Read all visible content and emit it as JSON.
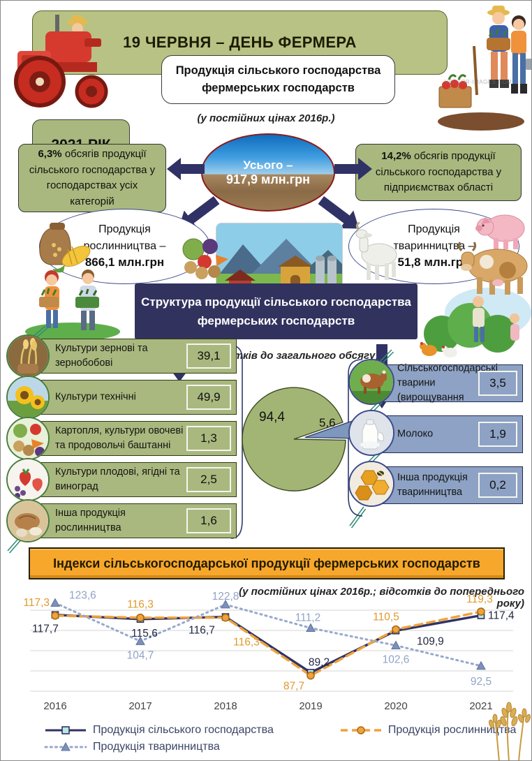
{
  "header": {
    "title": "19 ЧЕРВНЯ – ДЕНЬ ФЕРМЕРА",
    "year_badge": "2021 РІК",
    "box_line1": "Продукція сільського господарства",
    "box_line2": "фермерських господарств",
    "price_note": "(у постійних цінах 2016р.)",
    "watermark": "VECTOR-IMAGES.COM"
  },
  "total": {
    "label": "Усього –",
    "value": "917,9 млн.грн"
  },
  "share_left": {
    "percent": "6,3%",
    "text": "обсягів продукції сільського господарства у господарствах усіх категорій"
  },
  "share_right": {
    "percent": "14,2%",
    "text": "обсягів продукції сільського господарства у підприємствах області"
  },
  "crops_total": {
    "line1": "Продукція",
    "line2": "рослинництва –",
    "value": "866,1 млн.грн"
  },
  "livestock_total": {
    "line1": "Продукція",
    "line2": "тваринництва –",
    "value": "51,8 млн.грн"
  },
  "structure": {
    "banner_line1": "Структура продукції сільського господарства",
    "banner_line2": "фермерських господарств",
    "note": "(відсотків до загального обсягу)",
    "crop_items": [
      {
        "label": "Культури зернові та зернобобові",
        "value": "39,1",
        "icon": "wheat-sack-icon"
      },
      {
        "label": "Культури технічні",
        "value": "49,9",
        "icon": "sunflower-icon"
      },
      {
        "label": "Картопля, культури овочеві та продовольчі баштанні",
        "value": "1,3",
        "icon": "vegetables-icon"
      },
      {
        "label": "Культури плодові, ягідні та виноград",
        "value": "2,5",
        "icon": "fruits-icon"
      },
      {
        "label": "Інша продукція рослинництва",
        "value": "1,6",
        "icon": "other-crops-icon"
      }
    ],
    "livestock_items": [
      {
        "label": "Сільськогосподарські тварини (вирощування",
        "value": "3,5",
        "icon": "cattle-icon"
      },
      {
        "label": "Молоко",
        "value": "1,9",
        "icon": "milk-icon"
      },
      {
        "label": "Інша продукція тваринництва",
        "value": "0,2",
        "icon": "honeycomb-icon"
      }
    ]
  },
  "indices": {
    "banner": "Індекси сільськогосподарської продукції фермерських господарств",
    "note": "(у постійних цінах 2016р.; відсотків до попереднього року)"
  },
  "chart_data": [
    {
      "type": "pie",
      "title": "Структура продукції сільського господарства фермерських господарств, відсотків до загального обсягу",
      "categories": [
        "Продукція рослинництва",
        "Продукція тваринництва"
      ],
      "values": [
        94.4,
        5.6
      ],
      "labels": [
        "94,4",
        "5,6"
      ],
      "colors": [
        "#a3b575",
        "#7d97bd"
      ],
      "explode": [
        0,
        1
      ]
    },
    {
      "type": "line",
      "title": "Індекси сільськогосподарської продукції фермерських господарств",
      "subtitle": "(у постійних цінах 2016р.; відсотків до попереднього року)",
      "x": [
        2016,
        2017,
        2018,
        2019,
        2020,
        2021
      ],
      "ylim": [
        80,
        125
      ],
      "gridlines": [
        120,
        110,
        100,
        90,
        80
      ],
      "grid": true,
      "legend_position": "bottom",
      "series": [
        {
          "name": "Продукція сільського господарства",
          "values": [
            117.7,
            115.6,
            116.7,
            89.2,
            109.9,
            117.4
          ],
          "labels": [
            "117,7",
            "115,6",
            "116,7",
            "89,2",
            "109,9",
            "117,4"
          ],
          "color": "#2f3366",
          "style": "solid",
          "marker": "square",
          "label_color": "#1f2540",
          "label_offsets": [
            [
              -14,
              25,
              "middle"
            ],
            [
              6,
              25,
              "middle"
            ],
            [
              -34,
              24,
              "middle"
            ],
            [
              12,
              -10,
              "middle"
            ],
            [
              30,
              20,
              "start"
            ],
            [
              10,
              5,
              "start"
            ]
          ]
        },
        {
          "name": "Продукція рослинництва",
          "values": [
            117.3,
            116.3,
            116.3,
            87.7,
            110.5,
            119.3
          ],
          "labels": [
            "117,3",
            "116,3",
            "116,3",
            "87,7",
            "110,5",
            "119,3"
          ],
          "color": "#f0a23c",
          "style": "dashed",
          "marker": "circle",
          "label_color": "#e09a2e",
          "label_offsets": [
            [
              -8,
              -14,
              "end"
            ],
            [
              0,
              -14,
              "middle"
            ],
            [
              30,
              40,
              "middle"
            ],
            [
              -24,
              20,
              "middle"
            ],
            [
              -14,
              -13,
              "middle"
            ],
            [
              -2,
              -13,
              "middle"
            ]
          ]
        },
        {
          "name": "Продукція тваринництва",
          "values": [
            123.6,
            104.7,
            122.8,
            111.2,
            102.6,
            92.5
          ],
          "labels": [
            "123,6",
            "104,7",
            "122,8",
            "111,2",
            "102,6",
            "92,5"
          ],
          "color": "#97a8cc",
          "style": "dotted",
          "marker": "triangle",
          "label_color": "#90a3c8",
          "label_offsets": [
            [
              20,
              -6,
              "start"
            ],
            [
              0,
              25,
              "middle"
            ],
            [
              0,
              -7,
              "middle"
            ],
            [
              -4,
              -10,
              "middle"
            ],
            [
              0,
              25,
              "middle"
            ],
            [
              0,
              27,
              "middle"
            ]
          ]
        }
      ]
    }
  ]
}
